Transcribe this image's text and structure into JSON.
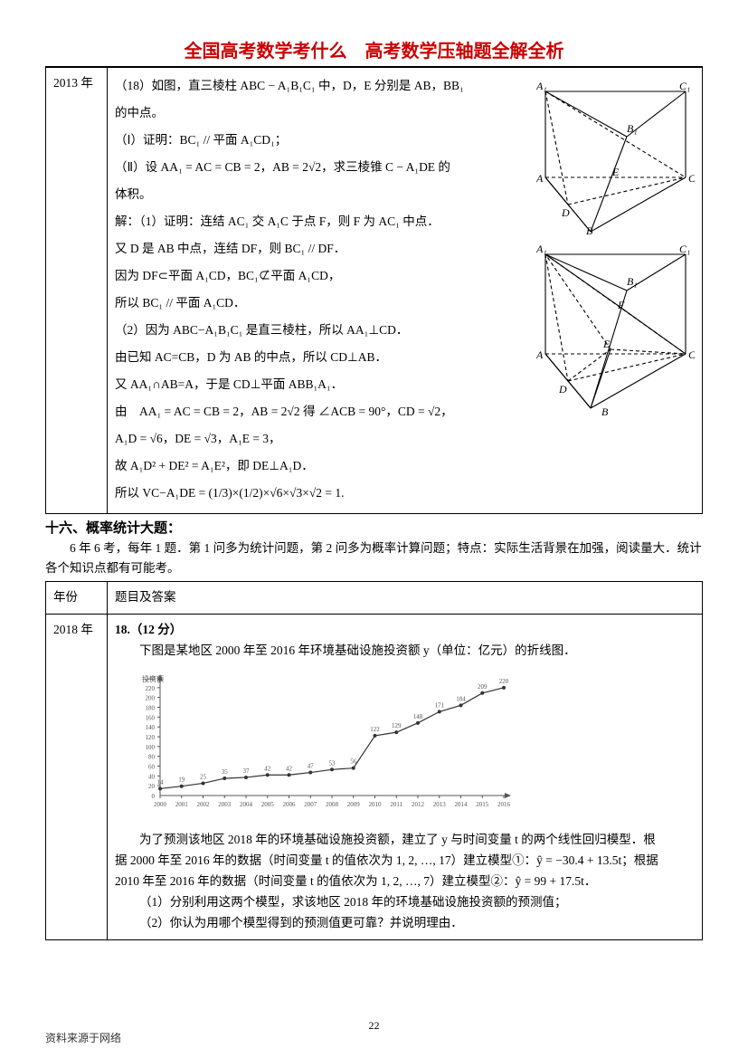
{
  "header": {
    "title": "全国高考数学考什么　高考数学压轴题全解全析",
    "title_color": "#cc0000"
  },
  "row1": {
    "year": "2013 年",
    "q18_intro": "（18）如图，直三棱柱 ABC − A₁B₁C₁ 中，D，E 分别是 AB，BB₁",
    "q18_intro2": "的中点。",
    "part1": "（Ⅰ）证明：BC₁ // 平面 A₁CD₁；",
    "part2_a": "（Ⅱ）设 AA₁ = AC = CB = 2，AB = 2√2，求三棱锥 C − A₁DE 的",
    "part2_b": "体积。",
    "sol_head": "解：（1）证明：连结 AC₁ 交 A₁C 于点 F，则 F 为 AC₁ 中点．",
    "sol_l1": "又 D 是 AB 中点，连结 DF，则 BC₁ // DF．",
    "sol_l2": "因为 DF⊂平面 A₁CD，BC₁⊄平面 A₁CD，",
    "sol_l3": "所以 BC₁ // 平面 A₁CD．",
    "sol_l4": "（2）因为 ABC−A₁B₁C₁ 是直三棱柱，所以 AA₁⊥CD．",
    "sol_l5": "由已知 AC=CB，D 为 AB 的中点，所以 CD⊥AB．",
    "sol_l6": "又 AA₁∩AB=A，于是 CD⊥平面 ABB₁A₁．",
    "sol_l7a": "由　AA₁ = AC = CB = 2，AB = 2√2 得 ∠ACB = 90°，CD = √2，",
    "sol_l8": "A₁D = √6，DE = √3，A₁E = 3，",
    "sol_l9": "故 A₁D² + DE² = A₁E²，即 DE⊥A₁D．",
    "sol_l10": "所以 VC−A₁DE = (1/3)×(1/2)×√6×√3×√2 = 1."
  },
  "section16": {
    "title": "十六、概率统计大题：",
    "desc": "6 年 6 考，每年 1 题．第 1 问多为统计问题，第 2 问多为概率计算问题；特点：实际生活背景在加强，阅读量大．统计各个知识点都有可能考。"
  },
  "table2_header": {
    "col1": "年份",
    "col2": "题目及答案"
  },
  "row2018": {
    "year": "2018 年",
    "q_num": "18.（12 分）",
    "q_intro": "下图是某地区 2000 年至 2016 年环境基础设施投资额 y（单位：亿元）的折线图．",
    "p1": "为了预测该地区 2018 年的环境基础设施投资额，建立了 y 与时间变量 t 的两个线性回归模型．根",
    "p2": "据 2000 年至 2016 年的数据（时间变量 t 的值依次为 1, 2, …, 17）建立模型①：ŷ = −30.4 + 13.5t；根据",
    "p3": "2010 年至 2016 年的数据（时间变量 t 的值依次为 1, 2, …, 7）建立模型②：ŷ = 99 + 17.5t．",
    "sub1": "（1）分别利用这两个模型，求该地区 2018 年的环境基础设施投资额的预测值；",
    "sub2": "（2）你认为用哪个模型得到的预测值更可靠？并说明理由．"
  },
  "chart": {
    "ylabel": "投资额",
    "xlabel": "年份",
    "ymax": 240,
    "ytick_step": 20,
    "bg": "#ffffff",
    "axis_color": "#555555",
    "line_color": "#333333",
    "font_size": 7,
    "years": [
      "2000",
      "2001",
      "2002",
      "2003",
      "2004",
      "2005",
      "2006",
      "2007",
      "2008",
      "2009",
      "2010",
      "2011",
      "2012",
      "2013",
      "2014",
      "2015",
      "2016"
    ],
    "values": [
      14,
      19,
      25,
      35,
      37,
      42,
      42,
      47,
      53,
      56,
      122,
      129,
      148,
      171,
      184,
      209,
      220
    ]
  },
  "prism1": {
    "labels": {
      "A1": "A₁",
      "B1": "B₁",
      "C1": "C₁",
      "A": "A",
      "B": "B",
      "C": "C",
      "D": "D",
      "E": "E"
    },
    "stroke": "#000000",
    "dash": "4,3"
  },
  "prism2": {
    "labels": {
      "A1": "A₁",
      "B1": "B₁",
      "C1": "C₁",
      "A": "A",
      "B": "B",
      "C": "C",
      "D": "D",
      "E": "E",
      "F": "F"
    }
  },
  "page_number": "22",
  "footer": "资料来源于网络"
}
